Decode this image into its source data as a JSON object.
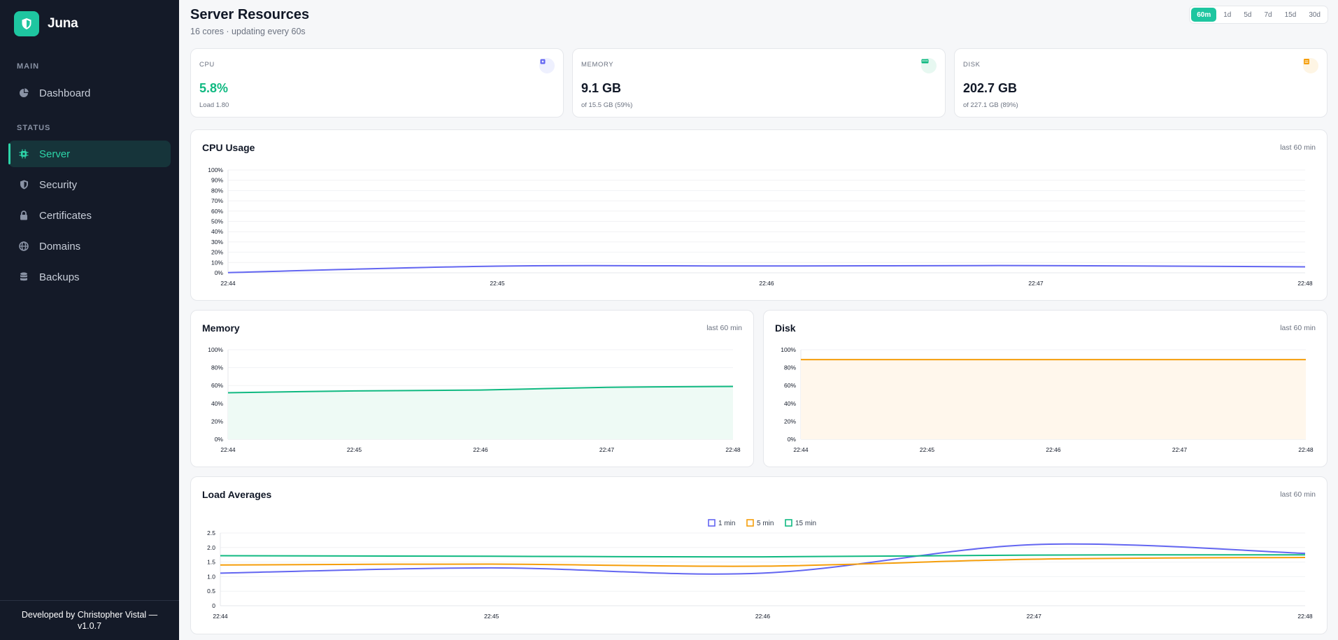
{
  "brand": {
    "name": "Juna"
  },
  "nav": {
    "sections": [
      {
        "label": "MAIN",
        "items": [
          {
            "label": "Dashboard",
            "icon": "pie-chart-icon"
          }
        ]
      },
      {
        "label": "STATUS",
        "items": [
          {
            "label": "Server",
            "icon": "chip-icon",
            "active": true
          },
          {
            "label": "Security",
            "icon": "shield-icon"
          },
          {
            "label": "Certificates",
            "icon": "lock-icon"
          },
          {
            "label": "Domains",
            "icon": "globe-icon"
          },
          {
            "label": "Backups",
            "icon": "database-icon"
          }
        ]
      }
    ]
  },
  "footer": {
    "line1": "Developed by Christopher Vistal —",
    "line2": "v1.0.7"
  },
  "header": {
    "title": "Server Resources",
    "subtitle": "16 cores · updating every 60s"
  },
  "range": {
    "options": [
      "60m",
      "1d",
      "5d",
      "7d",
      "15d",
      "30d"
    ],
    "selected": "60m"
  },
  "stats": [
    {
      "label": "CPU",
      "value": "5.8%",
      "sub": "Load 1.80",
      "color": "#10b981",
      "icon": "cpu-icon",
      "icon_color": "#6366f1",
      "icon_bg": "#eef0fe"
    },
    {
      "label": "MEMORY",
      "value": "9.1 GB",
      "sub": "of 15.5 GB (59%)",
      "color": "#111827",
      "icon": "memory-icon",
      "icon_color": "#10b981",
      "icon_bg": "#e7f8f1"
    },
    {
      "label": "DISK",
      "value": "202.7 GB",
      "sub": "of 227.1 GB (89%)",
      "color": "#111827",
      "icon": "disk-icon",
      "icon_color": "#f59e0b",
      "icon_bg": "#fef5e4"
    }
  ],
  "chart_data": [
    {
      "id": "cpu",
      "type": "line",
      "title": "CPU Usage",
      "period": "last 60 min",
      "x": [
        "22:44",
        "22:45",
        "22:46",
        "22:47",
        "22:48"
      ],
      "yticks": [
        "0%",
        "10%",
        "20%",
        "30%",
        "40%",
        "50%",
        "60%",
        "70%",
        "80%",
        "90%",
        "100%"
      ],
      "ylim": [
        0,
        100
      ],
      "grid": true,
      "series": [
        {
          "values": [
            0.2,
            6.5,
            6.6,
            7.0,
            5.8
          ],
          "color": "#6366f1",
          "fill": false
        }
      ]
    },
    {
      "id": "memory",
      "type": "area",
      "title": "Memory",
      "period": "last 60 min",
      "x": [
        "22:44",
        "22:45",
        "22:46",
        "22:47",
        "22:48"
      ],
      "yticks": [
        "0%",
        "20%",
        "40%",
        "60%",
        "80%",
        "100%"
      ],
      "ylim": [
        0,
        100
      ],
      "grid": true,
      "series": [
        {
          "values": [
            52,
            54,
            55,
            58,
            59
          ],
          "color": "#10b981",
          "fill": true,
          "fill_color": "#eefaf5"
        }
      ]
    },
    {
      "id": "disk",
      "type": "area",
      "title": "Disk",
      "period": "last 60 min",
      "x": [
        "22:44",
        "22:45",
        "22:46",
        "22:47",
        "22:48"
      ],
      "yticks": [
        "0%",
        "20%",
        "40%",
        "60%",
        "80%",
        "100%"
      ],
      "ylim": [
        0,
        100
      ],
      "grid": true,
      "series": [
        {
          "values": [
            89,
            89,
            89,
            89,
            89
          ],
          "color": "#f59e0b",
          "fill": true,
          "fill_color": "#fff7ec"
        }
      ]
    },
    {
      "id": "load",
      "type": "line",
      "title": "Load Averages",
      "period": "last 60 min",
      "x": [
        "22:44",
        "22:45",
        "22:46",
        "22:47",
        "22:48"
      ],
      "yticks": [
        "0",
        "0.5",
        "1.0",
        "1.5",
        "2.0",
        "2.5"
      ],
      "ylim": [
        0,
        2.5
      ],
      "grid": true,
      "legend": "top-center",
      "series": [
        {
          "name": "1 min",
          "values": [
            1.12,
            1.3,
            1.12,
            2.1,
            1.8
          ],
          "color": "#6366f1",
          "fill": false
        },
        {
          "name": "5 min",
          "values": [
            1.4,
            1.43,
            1.36,
            1.6,
            1.66
          ],
          "color": "#f59e0b",
          "fill": false
        },
        {
          "name": "15 min",
          "values": [
            1.72,
            1.7,
            1.68,
            1.74,
            1.75
          ],
          "color": "#10b981",
          "fill": false
        }
      ]
    }
  ]
}
